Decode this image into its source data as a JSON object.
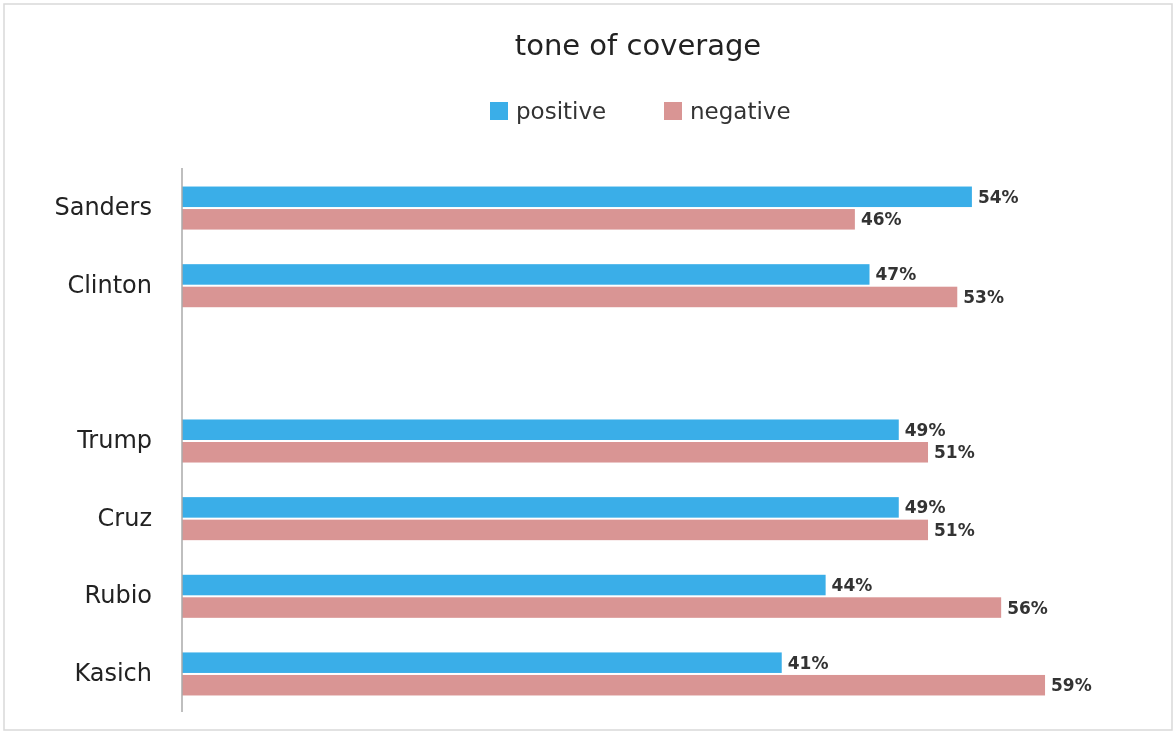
{
  "chart_data": {
    "type": "bar",
    "orientation": "horizontal",
    "title": "tone of coverage",
    "categories": [
      "Sanders",
      "Clinton",
      null,
      "Trump",
      "Cruz",
      "Rubio",
      "Kasich"
    ],
    "series": [
      {
        "name": "positive",
        "color": "#3aaee8",
        "values": [
          54,
          47,
          null,
          49,
          49,
          44,
          41
        ],
        "value_labels": [
          "54%",
          "47%",
          null,
          "49%",
          "49%",
          "44%",
          "41%"
        ]
      },
      {
        "name": "negative",
        "color": "#d99594",
        "values": [
          46,
          53,
          null,
          51,
          51,
          56,
          59
        ],
        "value_labels": [
          "46%",
          "53%",
          null,
          "51%",
          "51%",
          "56%",
          "59%"
        ]
      }
    ],
    "legend": "top",
    "grid": false
  }
}
